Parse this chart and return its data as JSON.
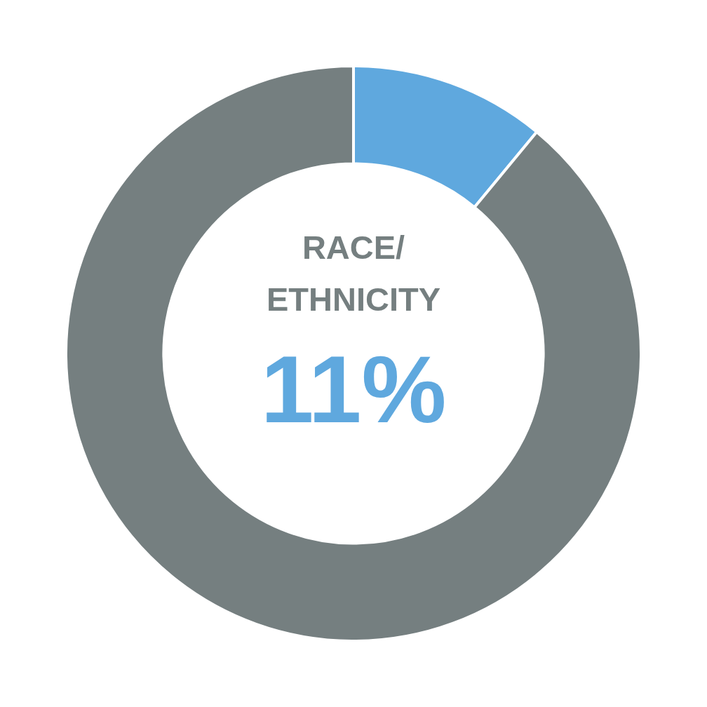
{
  "chart_data": {
    "type": "donut",
    "title": "RACE/ ETHNICITY",
    "categories": [
      null,
      null
    ],
    "values": [
      11,
      89
    ],
    "colors": [
      "#5fa8de",
      "#757f80"
    ],
    "annotations": [
      "11%"
    ],
    "legend": false
  }
}
